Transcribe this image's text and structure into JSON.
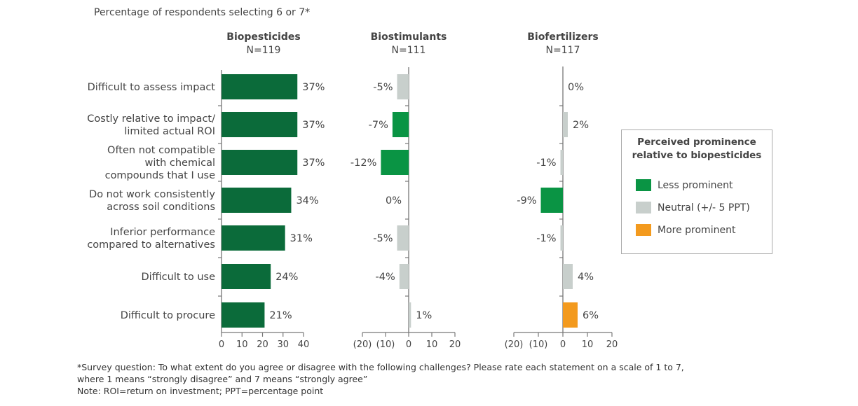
{
  "chart_data": {
    "type": "bar",
    "orientation": "horizontal",
    "title": "Percentage of respondents selecting 6 or 7*",
    "categories": [
      [
        "Difficult to assess impact"
      ],
      [
        "Costly relative to impact/",
        "limited actual ROI"
      ],
      [
        "Often not compatible",
        "with chemical",
        "compounds that I use"
      ],
      [
        "Do not work consistently",
        "across soil conditions"
      ],
      [
        "Inferior performance",
        "compared to alternatives"
      ],
      [
        "Difficult to use"
      ],
      [
        "Difficult to procure"
      ]
    ],
    "panels": [
      {
        "name": "Biopesticides",
        "n": "N=119",
        "values": [
          37,
          37,
          37,
          34,
          31,
          24,
          21
        ],
        "labels": [
          "37%",
          "37%",
          "37%",
          "34%",
          "31%",
          "24%",
          "21%"
        ],
        "classes": [
          "base",
          "base",
          "base",
          "base",
          "base",
          "base",
          "base"
        ],
        "xlim": [
          0,
          40
        ],
        "ticks": [
          "0",
          "10",
          "20",
          "30",
          "40"
        ],
        "tick_values": [
          0,
          10,
          20,
          30,
          40
        ]
      },
      {
        "name": "Biostimulants",
        "n": "N=111",
        "values": [
          -5,
          -7,
          -12,
          0,
          -5,
          -4,
          1
        ],
        "labels": [
          "-5%",
          "-7%",
          "-12%",
          "0%",
          "-5%",
          "-4%",
          "1%"
        ],
        "classes": [
          "neutral",
          "less",
          "less",
          "neutral",
          "neutral",
          "neutral",
          "neutral"
        ],
        "xlim": [
          -20,
          20
        ],
        "ticks": [
          "(20)",
          "(10)",
          "0",
          "10",
          "20"
        ],
        "tick_values": [
          -20,
          -10,
          0,
          10,
          20
        ]
      },
      {
        "name": "Biofertilizers",
        "n": "N=117",
        "values": [
          0,
          2,
          -1,
          -9,
          -1,
          4,
          6
        ],
        "labels": [
          "0%",
          "2%",
          "-1%",
          "-9%",
          "-1%",
          "4%",
          "6%"
        ],
        "classes": [
          "neutral",
          "neutral",
          "neutral",
          "less",
          "neutral",
          "neutral",
          "more"
        ],
        "xlim": [
          -20,
          20
        ],
        "ticks": [
          "(20)",
          "(10)",
          "0",
          "10",
          "20"
        ],
        "tick_values": [
          -20,
          -10,
          0,
          10,
          20
        ]
      }
    ],
    "legend": {
      "title": [
        "Perceived prominence",
        "relative to biopesticides"
      ],
      "placement": "right",
      "items": [
        {
          "key": "less",
          "label": "Less prominent"
        },
        {
          "key": "neutral",
          "label": "Neutral (+/- 5 PPT)"
        },
        {
          "key": "more",
          "label": "More prominent"
        }
      ]
    },
    "colors": {
      "base": "#0b6b3a",
      "less": "#0a9444",
      "neutral": "#c8cfcc",
      "more": "#f39a1e",
      "axis": "#777777"
    },
    "grid": false
  },
  "footnotes": [
    "*Survey question: To what extent do you agree or disagree with the following challenges? Please rate each statement on a scale of 1 to 7,",
    "where 1 means “strongly disagree” and 7 means “strongly agree”",
    "Note: ROI=return on investment; PPT=percentage point"
  ]
}
